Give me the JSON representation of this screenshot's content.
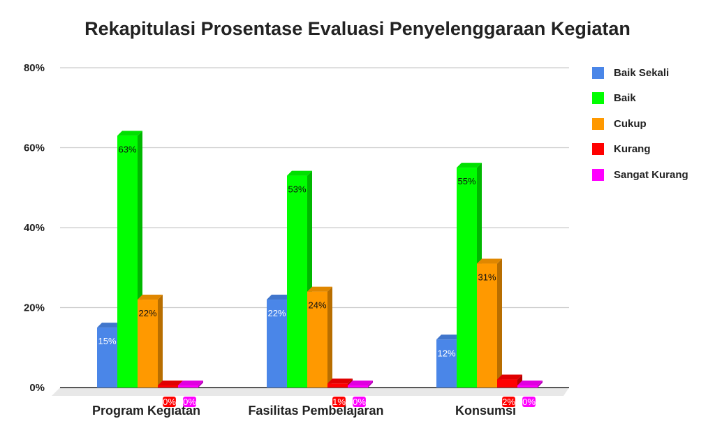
{
  "chart_data": {
    "type": "bar",
    "title": "Rekapitulasi Prosentase Evaluasi Penyelenggaraan Kegiatan",
    "xlabel": "",
    "ylabel": "",
    "categories": [
      "Program Kegiatan",
      "Fasilitas Pembelajaran",
      "Konsumsi"
    ],
    "series": [
      {
        "name": "Baik Sekali",
        "color": "#4a86e8",
        "values": [
          15,
          22,
          12
        ],
        "labels": [
          "15%",
          "22%",
          "12%"
        ]
      },
      {
        "name": "Baik",
        "color": "#00ff00",
        "values": [
          63,
          53,
          55
        ],
        "labels": [
          "63%",
          "53%",
          "55%"
        ]
      },
      {
        "name": "Cukup",
        "color": "#ff9900",
        "values": [
          22,
          24,
          31
        ],
        "labels": [
          "22%",
          "24%",
          "31%"
        ]
      },
      {
        "name": "Kurang",
        "color": "#ff0000",
        "values": [
          0,
          1,
          2
        ],
        "labels": [
          "0%",
          "1%",
          "2%"
        ]
      },
      {
        "name": "Sangat Kurang",
        "color": "#ff00ff",
        "values": [
          0,
          0,
          0
        ],
        "labels": [
          "0%",
          "0%",
          "0%"
        ]
      }
    ],
    "ylim": [
      0,
      80
    ],
    "yticks": [
      0,
      20,
      40,
      60,
      80
    ],
    "ytick_labels": [
      "0%",
      "20%",
      "40%",
      "60%",
      "80%"
    ],
    "grid": true,
    "legend_position": "right",
    "three_d": true
  }
}
